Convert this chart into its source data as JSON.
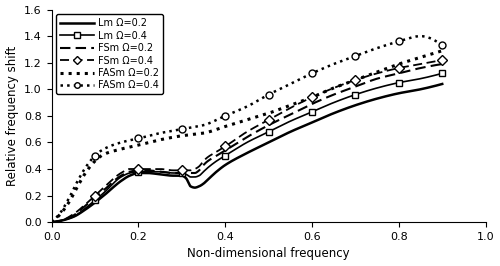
{
  "title": "",
  "xlabel": "Non-dimensional frequency",
  "ylabel": "Relative frequency shift",
  "xlim": [
    0,
    1.0
  ],
  "ylim": [
    0,
    1.6
  ],
  "xticks": [
    0,
    0.2,
    0.4,
    0.6,
    0.8,
    1.0
  ],
  "yticks": [
    0,
    0.2,
    0.4,
    0.6,
    0.8,
    1.0,
    1.2,
    1.4,
    1.6
  ],
  "legend_labels": [
    "Lm Ω=0.2",
    "Lm Ω=0.4",
    "FSm Ω=0.2",
    "FSm Ω=0.4",
    "FASm Ω=0.2",
    "FASm Ω=0.4"
  ],
  "background_color": "#ffffff",
  "line_color": "#000000",
  "lm02_x": [
    0.0,
    0.02,
    0.05,
    0.08,
    0.12,
    0.16,
    0.18,
    0.2,
    0.22,
    0.25,
    0.28,
    0.3,
    0.31,
    0.315,
    0.32,
    0.33,
    0.34,
    0.35,
    0.36,
    0.38,
    0.4,
    0.45,
    0.5,
    0.55,
    0.6,
    0.65,
    0.7,
    0.75,
    0.8,
    0.85,
    0.9
  ],
  "lm02_y": [
    0.0,
    0.01,
    0.04,
    0.1,
    0.2,
    0.31,
    0.35,
    0.37,
    0.37,
    0.36,
    0.35,
    0.35,
    0.33,
    0.3,
    0.27,
    0.26,
    0.27,
    0.29,
    0.32,
    0.38,
    0.43,
    0.52,
    0.6,
    0.68,
    0.75,
    0.82,
    0.88,
    0.93,
    0.97,
    1.0,
    1.04
  ],
  "lm04_x": [
    0.0,
    0.02,
    0.05,
    0.08,
    0.12,
    0.16,
    0.18,
    0.2,
    0.22,
    0.25,
    0.28,
    0.3,
    0.31,
    0.315,
    0.32,
    0.33,
    0.34,
    0.35,
    0.36,
    0.38,
    0.4,
    0.45,
    0.5,
    0.55,
    0.6,
    0.65,
    0.7,
    0.75,
    0.8,
    0.85,
    0.9
  ],
  "lm04_y": [
    0.0,
    0.01,
    0.04,
    0.11,
    0.22,
    0.34,
    0.37,
    0.38,
    0.38,
    0.38,
    0.37,
    0.37,
    0.36,
    0.35,
    0.34,
    0.34,
    0.35,
    0.38,
    0.41,
    0.46,
    0.5,
    0.6,
    0.68,
    0.76,
    0.83,
    0.9,
    0.96,
    1.01,
    1.05,
    1.08,
    1.12
  ],
  "fsm02_x": [
    0.0,
    0.02,
    0.05,
    0.08,
    0.12,
    0.16,
    0.18,
    0.2,
    0.22,
    0.25,
    0.28,
    0.3,
    0.31,
    0.315,
    0.32,
    0.33,
    0.34,
    0.35,
    0.36,
    0.38,
    0.4,
    0.45,
    0.5,
    0.55,
    0.6,
    0.65,
    0.7,
    0.75,
    0.8,
    0.85,
    0.9
  ],
  "fsm02_y": [
    0.0,
    0.01,
    0.05,
    0.13,
    0.24,
    0.35,
    0.38,
    0.39,
    0.39,
    0.38,
    0.37,
    0.37,
    0.37,
    0.37,
    0.37,
    0.37,
    0.39,
    0.43,
    0.46,
    0.5,
    0.54,
    0.64,
    0.73,
    0.81,
    0.89,
    0.96,
    1.02,
    1.08,
    1.12,
    1.16,
    1.19
  ],
  "fsm04_x": [
    0.0,
    0.02,
    0.05,
    0.08,
    0.12,
    0.16,
    0.18,
    0.2,
    0.22,
    0.25,
    0.28,
    0.3,
    0.31,
    0.315,
    0.32,
    0.33,
    0.34,
    0.35,
    0.36,
    0.38,
    0.4,
    0.45,
    0.5,
    0.55,
    0.6,
    0.65,
    0.7,
    0.75,
    0.8,
    0.85,
    0.9
  ],
  "fsm04_y": [
    0.0,
    0.01,
    0.06,
    0.14,
    0.26,
    0.37,
    0.4,
    0.4,
    0.4,
    0.4,
    0.39,
    0.39,
    0.39,
    0.39,
    0.39,
    0.4,
    0.42,
    0.46,
    0.49,
    0.53,
    0.57,
    0.68,
    0.77,
    0.86,
    0.94,
    1.01,
    1.07,
    1.12,
    1.16,
    1.19,
    1.22
  ],
  "fasm02_x": [
    0.0,
    0.02,
    0.04,
    0.06,
    0.08,
    0.1,
    0.12,
    0.16,
    0.2,
    0.25,
    0.3,
    0.35,
    0.4,
    0.45,
    0.5,
    0.55,
    0.6,
    0.65,
    0.7,
    0.75,
    0.8,
    0.85,
    0.9
  ],
  "fasm02_y": [
    0.0,
    0.06,
    0.15,
    0.27,
    0.38,
    0.46,
    0.51,
    0.55,
    0.58,
    0.62,
    0.65,
    0.67,
    0.72,
    0.77,
    0.82,
    0.88,
    0.94,
    1.01,
    1.07,
    1.13,
    1.19,
    1.24,
    1.29
  ],
  "fasm04_x": [
    0.0,
    0.02,
    0.04,
    0.06,
    0.08,
    0.1,
    0.12,
    0.16,
    0.2,
    0.25,
    0.3,
    0.35,
    0.4,
    0.45,
    0.5,
    0.55,
    0.6,
    0.65,
    0.7,
    0.75,
    0.8,
    0.85,
    0.9
  ],
  "fasm04_y": [
    0.0,
    0.07,
    0.18,
    0.31,
    0.42,
    0.5,
    0.55,
    0.6,
    0.63,
    0.67,
    0.7,
    0.73,
    0.8,
    0.87,
    0.96,
    1.04,
    1.12,
    1.19,
    1.25,
    1.31,
    1.36,
    1.4,
    1.33
  ]
}
